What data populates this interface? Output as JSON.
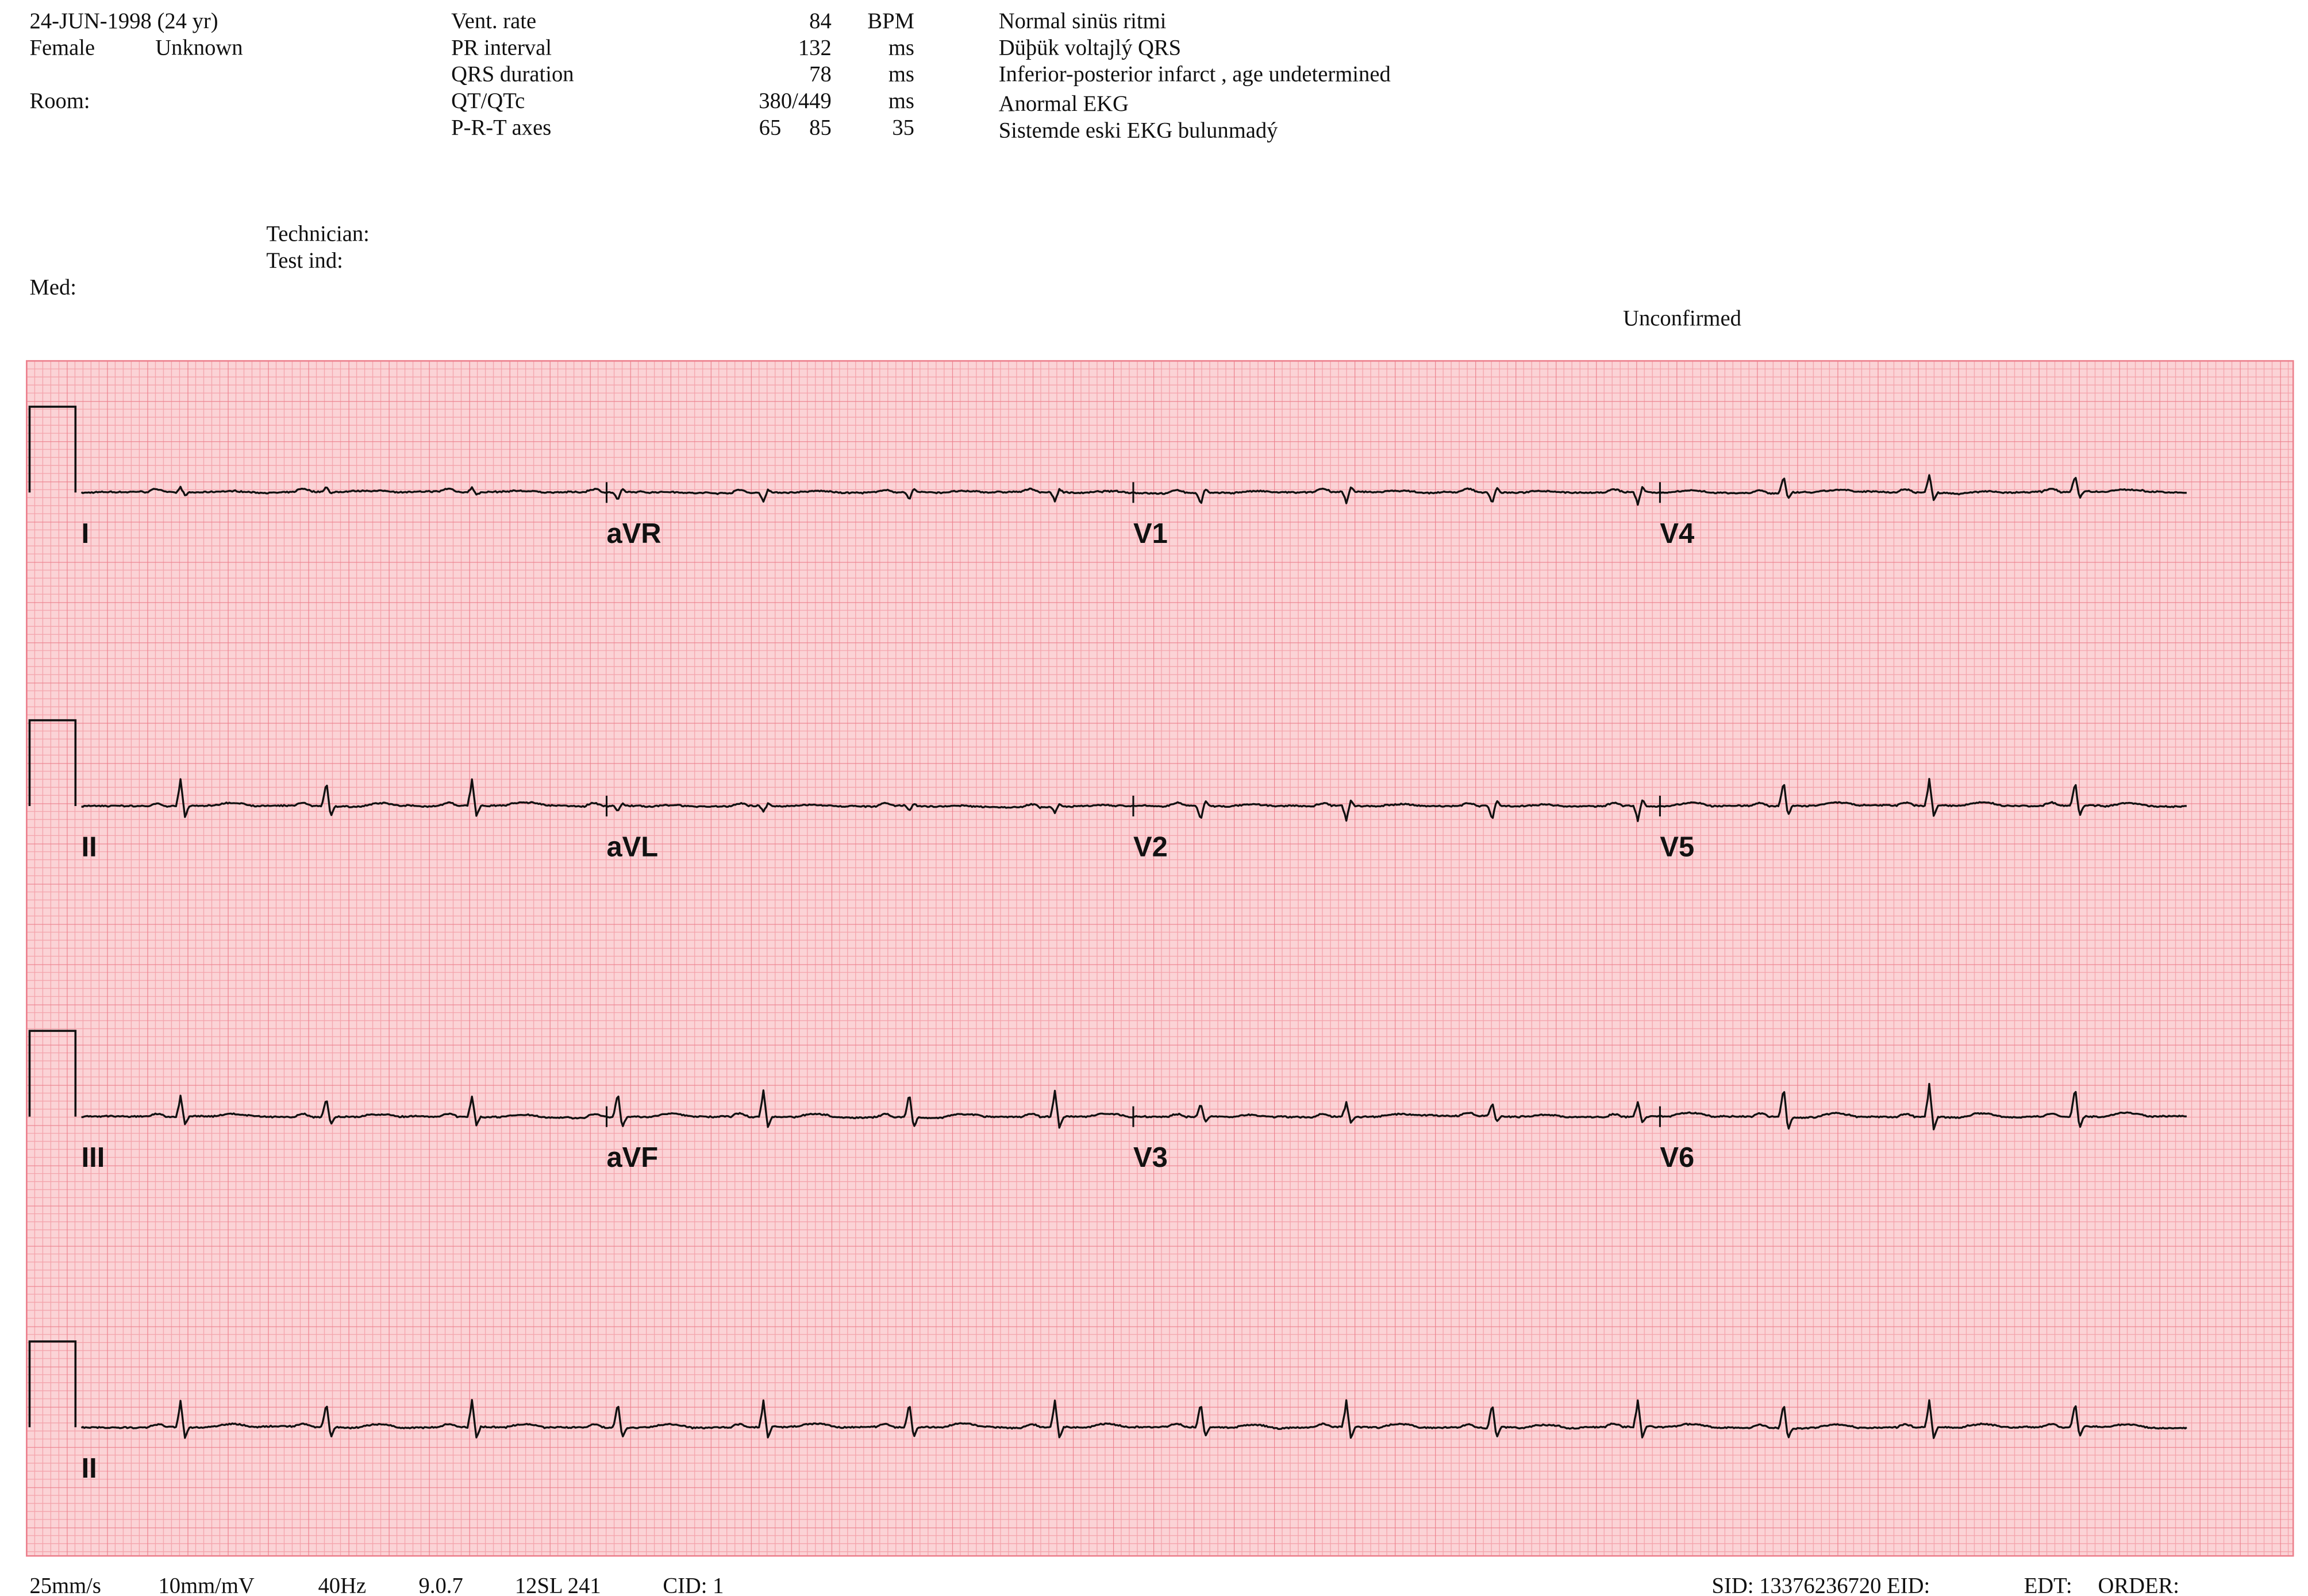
{
  "header": {
    "date": "24-JUN-1998 (24 yr)",
    "sex": "Female",
    "race": "Unknown",
    "room": "Room:"
  },
  "measurements": [
    {
      "label": "Vent. rate",
      "value": 84,
      "unit": "BPM"
    },
    {
      "label": "PR interval",
      "value": 132,
      "unit": "ms"
    },
    {
      "label": "QRS duration",
      "value": 78,
      "unit": "ms"
    },
    {
      "label": "QT/QTc",
      "value": "380/449",
      "unit": "ms"
    },
    {
      "label": "P-R-T axes",
      "p": 65,
      "r": 85,
      "t": 35
    }
  ],
  "interpretation": [
    "Normal sinüs ritmi",
    "Düþük voltajlý QRS",
    "Inferior-posterior infarct , age undetermined",
    "Anormal EKG",
    "Sistemde eski EKG bulunmadý"
  ],
  "technician": "Technician:",
  "test_ind": "Test ind:",
  "med": "Med:",
  "status": "Unconfirmed",
  "leads": [
    [
      "I",
      "aVR",
      "V1",
      "V4"
    ],
    [
      "II",
      "aVL",
      "V2",
      "V5"
    ],
    [
      "III",
      "aVF",
      "V3",
      "V6"
    ],
    [
      "II"
    ]
  ],
  "footer": {
    "speed": "25mm/s",
    "gain": "10mm/mV",
    "filter": "40Hz",
    "version": "9.0.7",
    "device": "12SL 241",
    "cid": "CID: 1",
    "sid": "SID: 13376236720 EID:",
    "edt": "EDT:",
    "order": "ORDER:"
  }
}
